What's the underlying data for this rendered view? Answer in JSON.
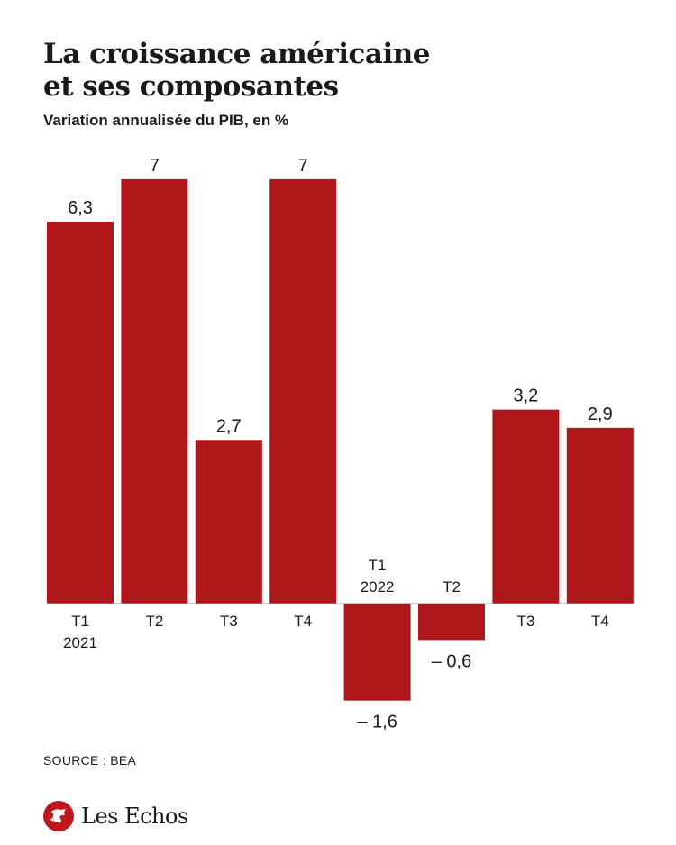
{
  "header": {
    "title_line1": "La croissance américaine",
    "title_line2": "et ses composantes",
    "subtitle": "Variation annualisée du PIB, en %"
  },
  "footer": {
    "source": "SOURCE : BEA",
    "brand": "Les Echos"
  },
  "colors": {
    "bar": "#b0171a",
    "text": "#1a1a1a"
  },
  "chart_data": {
    "type": "bar",
    "title": "La croissance américaine et ses composantes",
    "subtitle": "Variation annualisée du PIB, en %",
    "categories": [
      "T1 2021",
      "T2",
      "T3",
      "T4",
      "T1 2022",
      "T2",
      "T3",
      "T4"
    ],
    "category_lines": [
      [
        "T1",
        "2021"
      ],
      [
        "T2"
      ],
      [
        "T3"
      ],
      [
        "T4"
      ],
      [
        "T1",
        "2022"
      ],
      [
        "T2"
      ],
      [
        "T3"
      ],
      [
        "T4"
      ]
    ],
    "values": [
      6.3,
      7,
      2.7,
      7,
      -1.6,
      -0.6,
      3.2,
      2.9
    ],
    "value_labels": [
      "6,3",
      "7",
      "2,7",
      "7",
      "– 1,6",
      "– 0,6",
      "3,2",
      "2,9"
    ],
    "ylim": [
      -1.6,
      7
    ],
    "grid": false,
    "legend": "none"
  }
}
